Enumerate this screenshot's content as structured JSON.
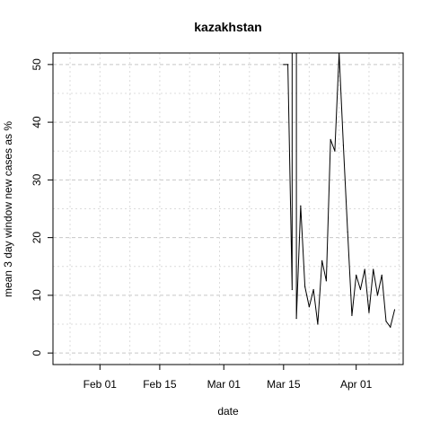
{
  "chart_data": {
    "type": "line",
    "title": "kazakhstan",
    "xlabel": "date",
    "ylabel": "mean  3  day window new cases as %",
    "xlim": [
      "2020-01-21",
      "2020-04-12"
    ],
    "ylim": [
      -2,
      52
    ],
    "x_ticks": [
      {
        "date": "2020-02-01",
        "label": "Feb 01"
      },
      {
        "date": "2020-02-15",
        "label": "Feb 15"
      },
      {
        "date": "2020-03-01",
        "label": "Mar 01"
      },
      {
        "date": "2020-03-15",
        "label": "Mar 15"
      },
      {
        "date": "2020-04-01",
        "label": "Apr 01"
      }
    ],
    "y_ticks": [
      0,
      10,
      20,
      30,
      40,
      50
    ],
    "grid": true,
    "series": [
      {
        "points": [
          [
            "2020-03-15",
            50
          ],
          [
            "2020-03-16",
            50
          ],
          [
            "2020-03-17",
            11
          ],
          [
            "2020-03-17",
            52
          ],
          [
            "2020-03-18",
            52
          ],
          [
            "2020-03-18",
            6
          ],
          [
            "2020-03-19",
            25.5
          ],
          [
            "2020-03-20",
            11.5
          ],
          [
            "2020-03-21",
            8
          ],
          [
            "2020-03-22",
            11
          ],
          [
            "2020-03-23",
            5
          ],
          [
            "2020-03-24",
            16
          ],
          [
            "2020-03-25",
            12.5
          ],
          [
            "2020-03-26",
            37
          ],
          [
            "2020-03-27",
            35
          ],
          [
            "2020-03-28",
            52
          ],
          [
            "2020-03-29",
            36
          ],
          [
            "2020-03-30",
            21
          ],
          [
            "2020-03-31",
            6.5
          ],
          [
            "2020-04-01",
            13.5
          ],
          [
            "2020-04-02",
            11
          ],
          [
            "2020-04-03",
            14.5
          ],
          [
            "2020-04-04",
            7
          ],
          [
            "2020-04-05",
            14.5
          ],
          [
            "2020-04-06",
            10
          ],
          [
            "2020-04-07",
            13.5
          ],
          [
            "2020-04-08",
            5.5
          ],
          [
            "2020-04-09",
            4.5
          ],
          [
            "2020-04-10",
            7.5
          ]
        ]
      }
    ]
  }
}
